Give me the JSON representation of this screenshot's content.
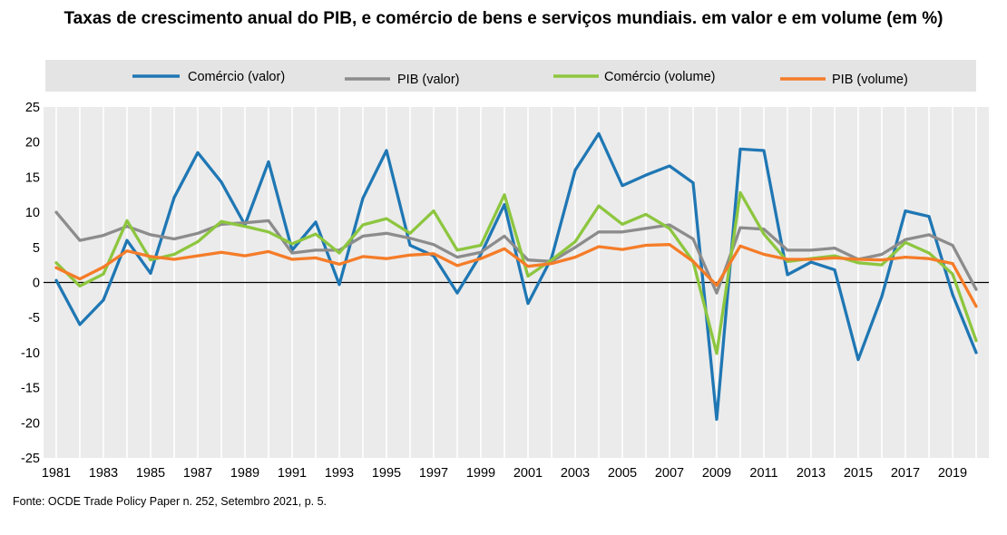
{
  "title": "Taxas de crescimento anual do PIB, e comércio de bens e serviços mundiais. em valor e em volume  (em %)",
  "source": "Fonte: OCDE Trade Policy Paper n. 252, Setembro   2021, p. 5.",
  "chart_data": {
    "type": "line",
    "title": "Taxas de crescimento anual do PIB, e comércio de bens e serviços mundiais. em valor e em volume  (em %)",
    "xlabel": "",
    "ylabel": "",
    "ylim": [
      -25,
      25
    ],
    "yticks": [
      25,
      20,
      15,
      10,
      5,
      0,
      -5,
      -10,
      -15,
      -20,
      -25
    ],
    "xlim": [
      1981,
      2020
    ],
    "xtick_labels": [
      "1981",
      "1983",
      "1985",
      "1987",
      "1989",
      "1991",
      "1993",
      "1995",
      "1997",
      "1999",
      "2001",
      "2003",
      "2005",
      "2007",
      "2009",
      "2011",
      "2013",
      "2015",
      "2017",
      "2019"
    ],
    "x": [
      1981,
      1982,
      1983,
      1984,
      1985,
      1986,
      1987,
      1988,
      1989,
      1990,
      1991,
      1992,
      1993,
      1994,
      1995,
      1996,
      1997,
      1998,
      1999,
      2000,
      2001,
      2002,
      2003,
      2004,
      2005,
      2006,
      2007,
      2008,
      2009,
      2010,
      2011,
      2012,
      2013,
      2014,
      2015,
      2016,
      2017,
      2018,
      2019,
      2020
    ],
    "grid": "vertical",
    "legend_position": "top",
    "series": [
      {
        "name": "Comércio (valor)",
        "color": "#1f77b4",
        "values": [
          0.3,
          -6,
          -2.5,
          6,
          1.3,
          12.1,
          18.5,
          14.3,
          8.2,
          17.2,
          4.6,
          8.6,
          -0.3,
          12,
          18.8,
          5.3,
          3.8,
          -1.5,
          4,
          11.1,
          -3,
          3.5,
          16,
          21.2,
          13.8,
          15.3,
          16.6,
          14.2,
          -19.5,
          19,
          18.8,
          1.1,
          2.9,
          1.8,
          -11,
          -2,
          10.2,
          9.4,
          -1.7,
          -10
        ]
      },
      {
        "name": "PIB (valor)",
        "color": "#8c8c8c",
        "values": [
          10,
          6,
          6.7,
          8,
          6.8,
          6.2,
          7,
          8.3,
          8.5,
          8.8,
          4.2,
          4.6,
          4.6,
          6.6,
          7,
          6.3,
          5.4,
          3.6,
          4.3,
          6.6,
          3.2,
          3,
          5,
          7.2,
          7.2,
          7.7,
          8.2,
          6.2,
          -1.5,
          7.8,
          7.6,
          4.6,
          4.6,
          4.9,
          3.3,
          4,
          6.1,
          6.8,
          5.3,
          -1
        ]
      },
      {
        "name": "Comércio (volume)",
        "color": "#8dc63f",
        "values": [
          2.8,
          -0.5,
          1.2,
          8.8,
          3.2,
          4,
          5.8,
          8.7,
          8,
          7.2,
          5.5,
          6.9,
          4.2,
          8.2,
          9.1,
          7,
          10.2,
          4.6,
          5.3,
          12.5,
          0.9,
          3.2,
          5.8,
          10.9,
          8.3,
          9.7,
          7.7,
          3,
          -10.1,
          12.8,
          6.9,
          3,
          3.4,
          3.8,
          2.8,
          2.5,
          5.7,
          4.2,
          1.2,
          -8.3
        ]
      },
      {
        "name": "PIB (volume)",
        "color": "#f57c28",
        "values": [
          2.1,
          0.5,
          2.2,
          4.5,
          3.7,
          3.3,
          3.8,
          4.3,
          3.8,
          4.4,
          3.3,
          3.5,
          2.6,
          3.7,
          3.4,
          3.9,
          4.1,
          2.4,
          3.4,
          4.8,
          2.3,
          2.7,
          3.6,
          5.1,
          4.7,
          5.3,
          5.4,
          3,
          -0.4,
          5.2,
          4,
          3.3,
          3.3,
          3.5,
          3.3,
          3.2,
          3.6,
          3.4,
          2.7,
          -3.4
        ]
      }
    ]
  }
}
